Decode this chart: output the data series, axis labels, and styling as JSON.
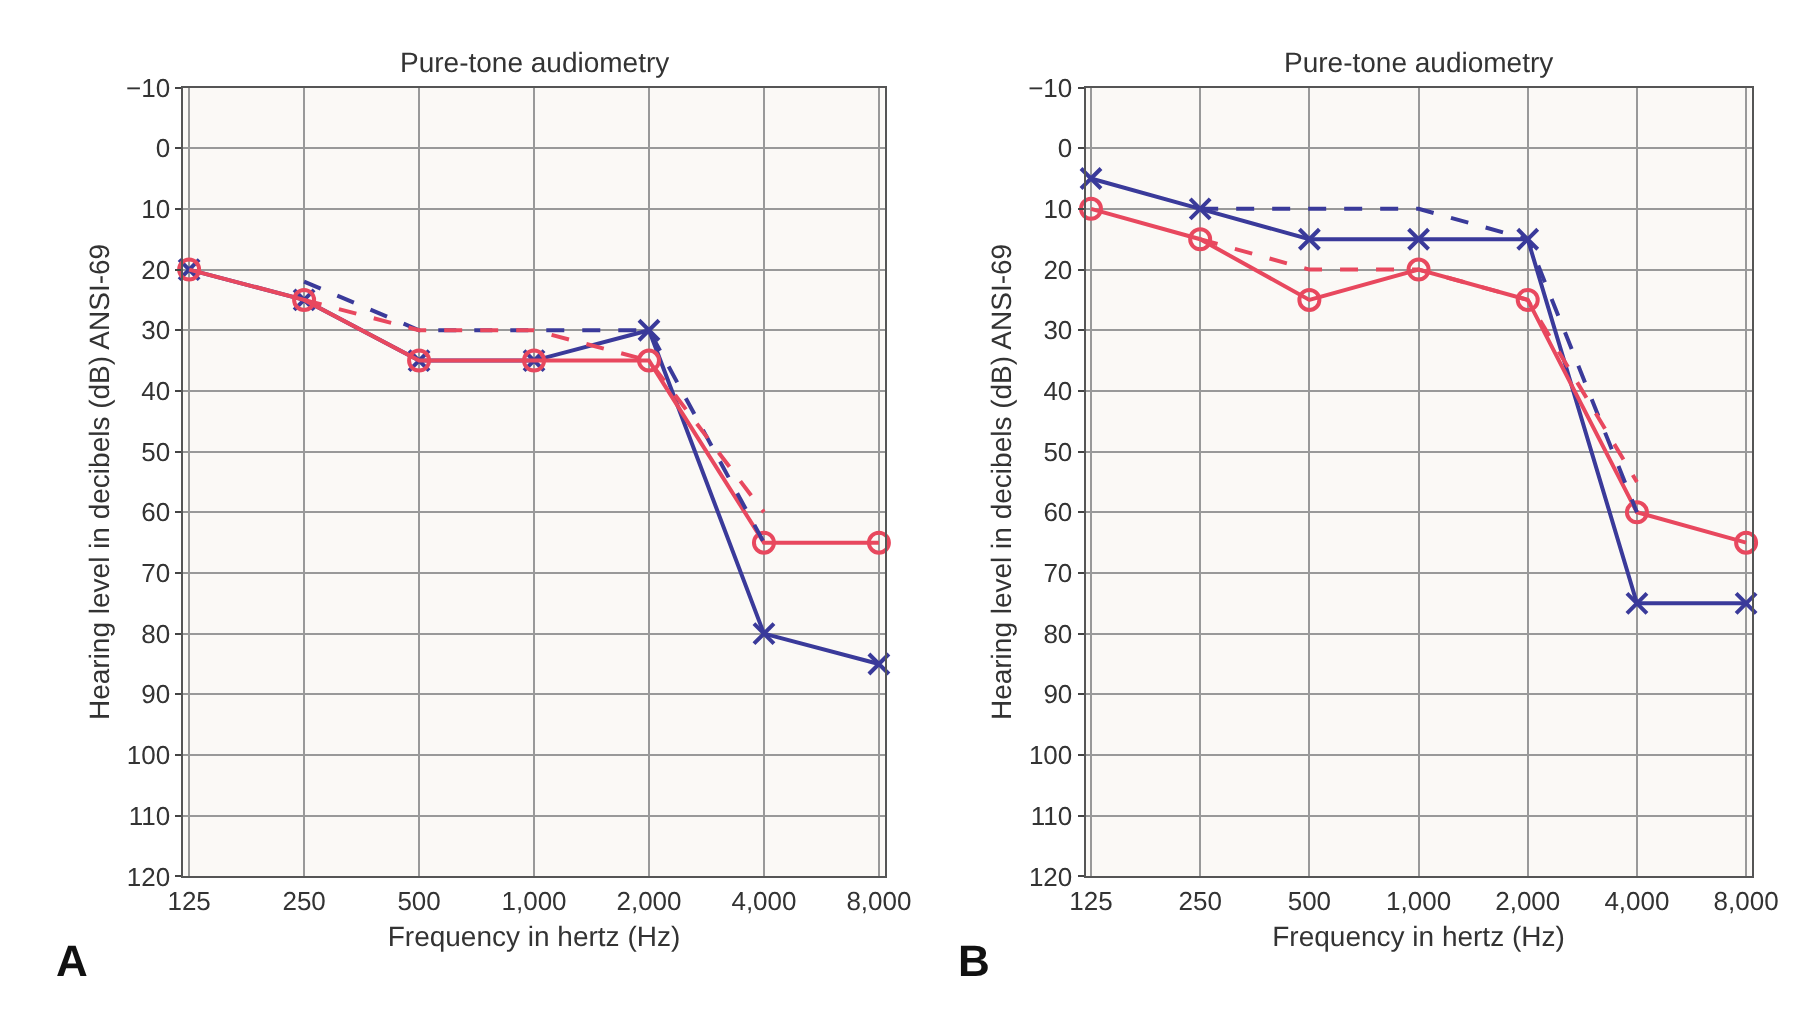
{
  "chart_data": [
    {
      "type": "line",
      "title": "Pure-tone audiometry",
      "xlabel": "Frequency in hertz (Hz)",
      "ylabel": "Hearing level in decibels (dB) ANSI-69",
      "annotations": [
        "A"
      ],
      "categories": [
        "125",
        "250",
        "500",
        "1,000",
        "2,000",
        "4,000",
        "8,000"
      ],
      "ylim": [
        120,
        -10
      ],
      "yticks": [
        {
          "value": -10,
          "label": "−10"
        },
        0,
        10,
        20,
        30,
        40,
        50,
        60,
        70,
        80,
        90,
        100,
        110,
        120
      ],
      "grid": true,
      "series": [
        {
          "color": "#3a3a9a",
          "line_style": "solid",
          "marker": "cross",
          "values": [
            20,
            25,
            35,
            35,
            30,
            80,
            85
          ]
        },
        {
          "color": "#e8485e",
          "line_style": "solid",
          "marker": "circle",
          "values": [
            20,
            25,
            35,
            35,
            35,
            65,
            65
          ]
        },
        {
          "color": "#3a3a9a",
          "line_style": "dashed",
          "marker": "none",
          "values": [
            null,
            22,
            30,
            30,
            30,
            65,
            null
          ]
        },
        {
          "color": "#e8485e",
          "line_style": "dashed",
          "marker": "none",
          "values": [
            null,
            25,
            30,
            30,
            35,
            60,
            null
          ]
        }
      ]
    },
    {
      "type": "line",
      "title": "Pure-tone audiometry",
      "xlabel": "Frequency in hertz (Hz)",
      "ylabel": "Hearing level in decibels (dB) ANSI-69",
      "annotations": [
        "B"
      ],
      "categories": [
        "125",
        "250",
        "500",
        "1,000",
        "2,000",
        "4,000",
        "8,000"
      ],
      "ylim": [
        120,
        -10
      ],
      "yticks": [
        {
          "value": -10,
          "label": "−10"
        },
        0,
        10,
        20,
        30,
        40,
        50,
        60,
        70,
        80,
        90,
        100,
        110,
        120
      ],
      "grid": true,
      "series": [
        {
          "color": "#3a3a9a",
          "line_style": "solid",
          "marker": "cross",
          "values": [
            5,
            10,
            15,
            15,
            15,
            75,
            75
          ]
        },
        {
          "color": "#e8485e",
          "line_style": "solid",
          "marker": "circle",
          "values": [
            10,
            15,
            25,
            20,
            25,
            60,
            65
          ]
        },
        {
          "color": "#3a3a9a",
          "line_style": "dashed",
          "marker": "none",
          "values": [
            null,
            10,
            10,
            10,
            15,
            60,
            null
          ]
        },
        {
          "color": "#e8485e",
          "line_style": "dashed",
          "marker": "none",
          "values": [
            null,
            15,
            20,
            20,
            25,
            55,
            null
          ]
        }
      ]
    }
  ]
}
